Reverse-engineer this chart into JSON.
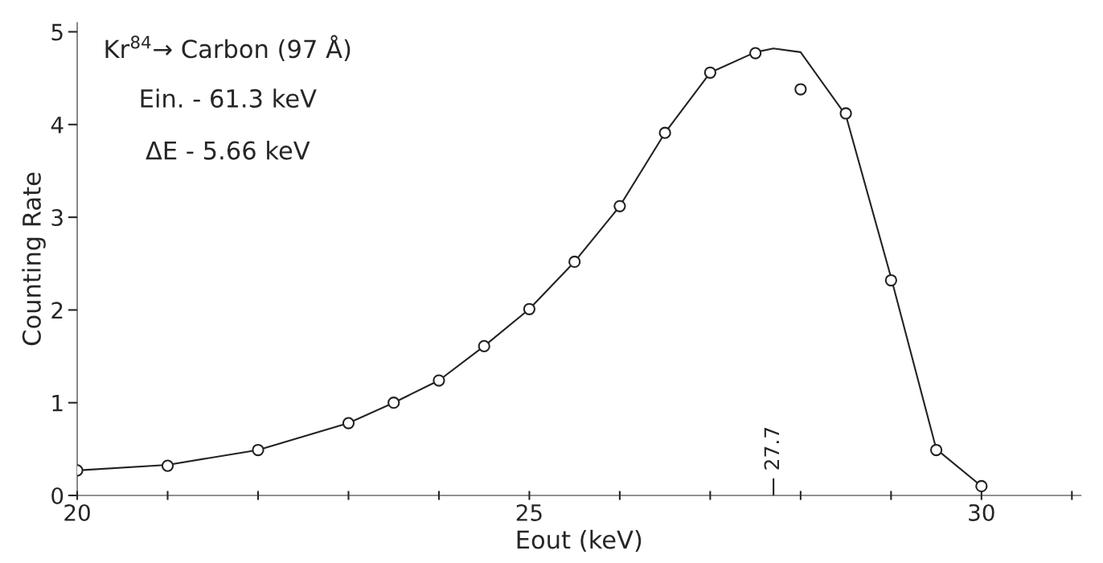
{
  "chart_data": {
    "type": "scatter",
    "xlabel": "Eout (keV)",
    "ylabel": "Counting Rate",
    "x": [
      20,
      21,
      22,
      23,
      23.5,
      24,
      24.5,
      25,
      25.5,
      26,
      26.5,
      27,
      27.5,
      28,
      28.5,
      29,
      29.5,
      30
    ],
    "series": [
      {
        "color": "#222222",
        "marker": "circle",
        "values": [
          0.27,
          0.32,
          0.49,
          0.78,
          1.0,
          1.24,
          1.61,
          2.01,
          2.52,
          3.12,
          3.91,
          4.56,
          4.77,
          4.38,
          4.12,
          2.32,
          0.49,
          0.1
        ]
      },
      {
        "type": "line",
        "color": "#222222",
        "marker": "none",
        "x": [
          20,
          21,
          22,
          23,
          23.5,
          24,
          24.5,
          25,
          25.5,
          26,
          26.5,
          27,
          27.5,
          27.7,
          28,
          28.5,
          29,
          29.5,
          30
        ],
        "values": [
          0.27,
          0.33,
          0.49,
          0.78,
          1.0,
          1.24,
          1.61,
          2.01,
          2.52,
          3.12,
          3.91,
          4.56,
          4.78,
          4.82,
          4.78,
          4.1,
          2.35,
          0.5,
          0.1
        ]
      }
    ],
    "xlim": [
      20,
      31.1
    ],
    "ylim": [
      0,
      5.1
    ],
    "xticks": [
      20,
      {
        "value": 21,
        "label": null
      },
      {
        "value": 22,
        "label": null
      },
      {
        "value": 23,
        "label": null
      },
      {
        "value": 24,
        "label": null
      },
      25,
      {
        "value": 26,
        "label": null
      },
      {
        "value": 27,
        "label": null
      },
      {
        "value": 28,
        "label": null
      },
      {
        "value": 29,
        "label": null
      },
      30,
      {
        "value": 31,
        "label": null
      }
    ],
    "yticks": [
      0,
      1,
      2,
      3,
      4,
      5
    ],
    "grid": false,
    "legend": false,
    "ref_lines": [
      {
        "axis": "x",
        "value": 27.7,
        "label": "27.7"
      }
    ],
    "annotations": [
      "Kr$^{84}$→ Carbon (97 Å)",
      "Ein. - 61.3 keV",
      "ΔE - 5.66 keV"
    ]
  }
}
